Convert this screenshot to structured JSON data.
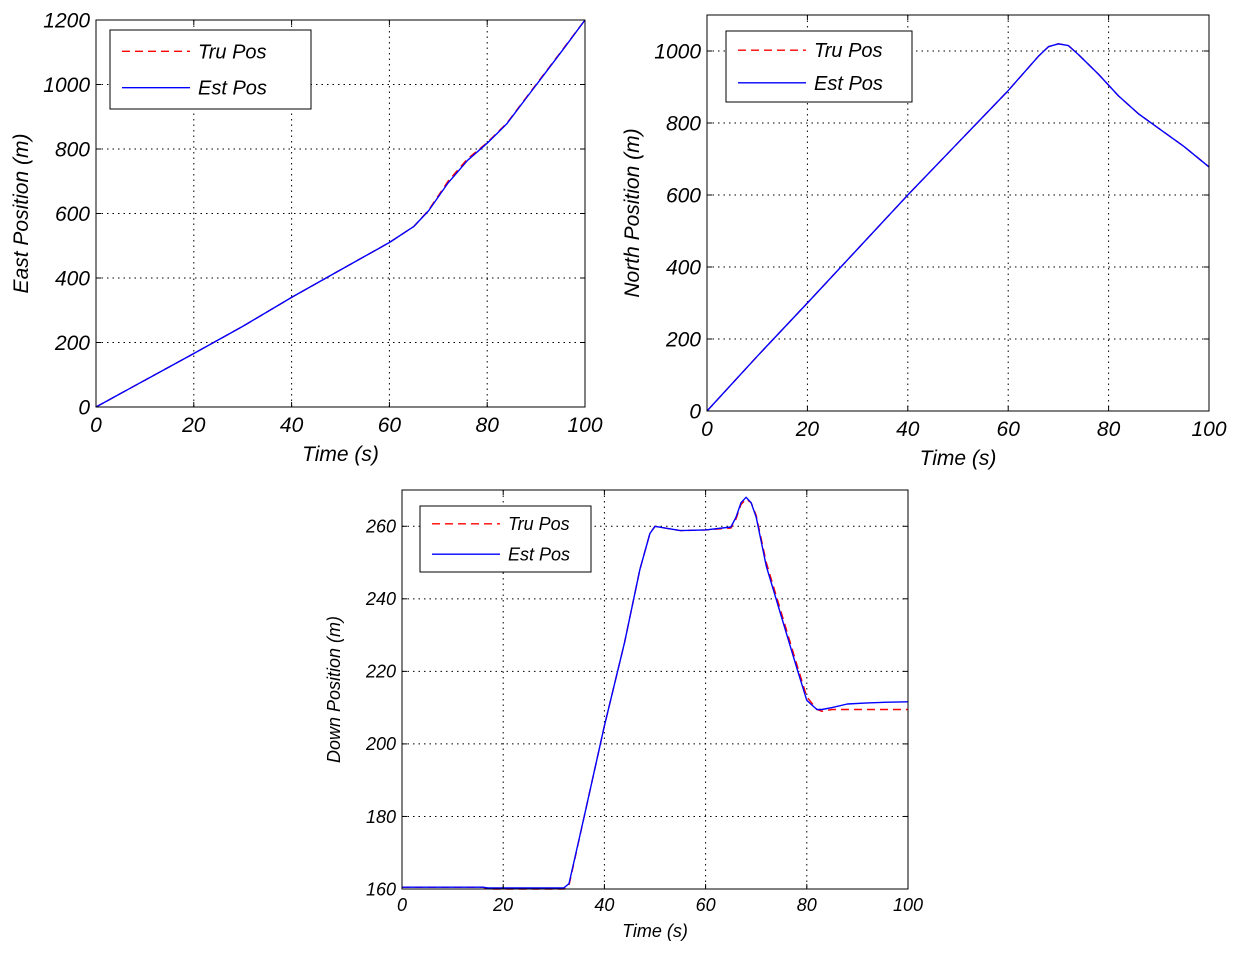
{
  "chart_data": [
    {
      "type": "line",
      "xlabel": "Time (s)",
      "ylabel": "East Position (m)",
      "xlim": [
        0,
        100
      ],
      "ylim": [
        0,
        1200
      ],
      "xticks": [
        0,
        20,
        40,
        60,
        80,
        100
      ],
      "yticks": [
        0,
        200,
        400,
        600,
        800,
        1000,
        1200
      ],
      "grid": true,
      "legend_position": "top-left",
      "series": [
        {
          "name": "Tru Pos",
          "color": "#ff0000",
          "style": "dashed",
          "x": [
            0,
            10,
            20,
            30,
            40,
            50,
            60,
            65,
            68,
            72,
            76,
            80,
            84,
            88,
            92,
            96,
            100
          ],
          "y": [
            0,
            83,
            166,
            250,
            340,
            425,
            510,
            560,
            610,
            700,
            770,
            820,
            880,
            960,
            1040,
            1120,
            1200
          ]
        },
        {
          "name": "Est Pos",
          "color": "#0000ff",
          "style": "solid",
          "x": [
            0,
            10,
            20,
            30,
            40,
            50,
            60,
            65,
            68,
            72,
            76,
            80,
            84,
            88,
            92,
            96,
            100
          ],
          "y": [
            0,
            83,
            166,
            250,
            340,
            425,
            510,
            560,
            608,
            695,
            765,
            818,
            878,
            958,
            1038,
            1118,
            1200
          ]
        }
      ]
    },
    {
      "type": "line",
      "xlabel": "Time (s)",
      "ylabel": "North Position (m)",
      "xlim": [
        0,
        100
      ],
      "ylim": [
        0,
        1100
      ],
      "xticks": [
        0,
        20,
        40,
        60,
        80,
        100
      ],
      "yticks": [
        0,
        200,
        400,
        600,
        800,
        1000
      ],
      "grid": true,
      "legend_position": "top-left",
      "series": [
        {
          "name": "Tru Pos",
          "color": "#ff0000",
          "style": "dashed",
          "x": [
            0,
            10,
            20,
            30,
            40,
            50,
            60,
            66,
            68,
            70,
            72,
            74,
            78,
            82,
            86,
            90,
            95,
            100
          ],
          "y": [
            0,
            152,
            300,
            450,
            600,
            745,
            890,
            985,
            1012,
            1020,
            1015,
            990,
            935,
            875,
            825,
            785,
            735,
            678
          ]
        },
        {
          "name": "Est Pos",
          "color": "#0000ff",
          "style": "solid",
          "x": [
            0,
            10,
            20,
            30,
            40,
            50,
            60,
            66,
            68,
            70,
            72,
            74,
            78,
            82,
            86,
            90,
            95,
            100
          ],
          "y": [
            0,
            152,
            300,
            450,
            600,
            745,
            890,
            985,
            1012,
            1020,
            1015,
            990,
            935,
            875,
            825,
            785,
            735,
            678
          ]
        }
      ]
    },
    {
      "type": "line",
      "xlabel": "Time (s)",
      "ylabel": "Down Position (m)",
      "xlim": [
        0,
        100
      ],
      "ylim": [
        160,
        270
      ],
      "xticks": [
        0,
        20,
        40,
        60,
        80,
        100
      ],
      "yticks": [
        160,
        180,
        200,
        220,
        240,
        260
      ],
      "grid": true,
      "legend_position": "top-left",
      "series": [
        {
          "name": "Tru Pos",
          "color": "#ff0000",
          "style": "dashed",
          "x": [
            0,
            16,
            17,
            32,
            33,
            36,
            40,
            44,
            47,
            49,
            50,
            52,
            55,
            60,
            65,
            66,
            67,
            68,
            69,
            70,
            72,
            75,
            78,
            80,
            82,
            83,
            85,
            88,
            92,
            96,
            100
          ],
          "y": [
            160.5,
            160.5,
            160,
            160,
            161,
            180,
            205,
            228,
            248,
            258,
            260,
            259.5,
            258.8,
            259,
            259.5,
            262,
            266,
            267.5,
            266.5,
            263,
            250,
            236,
            222,
            213,
            209.5,
            209,
            209.5,
            209.5,
            209.5,
            209.5,
            209.5
          ]
        },
        {
          "name": "Est Pos",
          "color": "#0000ff",
          "style": "solid",
          "x": [
            0,
            16,
            17,
            32,
            33,
            36,
            40,
            44,
            47,
            49,
            50,
            52,
            55,
            60,
            65,
            66,
            67,
            68,
            69,
            70,
            72,
            75,
            78,
            80,
            82,
            83,
            85,
            88,
            92,
            96,
            100
          ],
          "y": [
            160.5,
            160.5,
            160.3,
            160.3,
            161.5,
            180,
            205,
            228,
            248,
            258,
            260,
            259.5,
            258.8,
            259,
            259.8,
            262.5,
            266.5,
            268,
            266.5,
            262.5,
            249,
            235,
            221,
            212,
            209.5,
            209.5,
            210,
            211,
            211.3,
            211.5,
            211.6
          ]
        }
      ]
    }
  ]
}
